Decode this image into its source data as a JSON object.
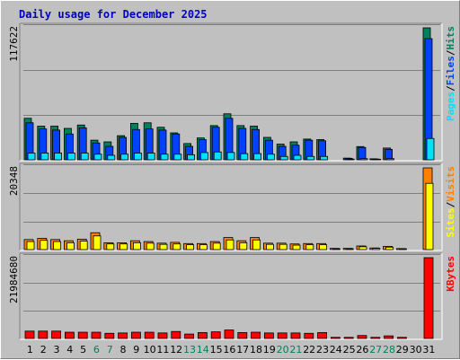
{
  "title": "Daily usage for December 2025",
  "colors": {
    "background": "#c0c0c0",
    "grid": "#808080",
    "hits": "#00805c",
    "files": "#0040ff",
    "pages": "#00e0ff",
    "visits": "#ff8000",
    "sites": "#ffff00",
    "kbytes": "#ff0000",
    "weekend": "#00805c",
    "weekday": "#000000",
    "title": "#0000c0"
  },
  "chart_data": [
    {
      "type": "bar",
      "panel": "hits-files-pages",
      "ymax_label": "117622",
      "ylim": [
        0,
        117622
      ],
      "legend": [
        {
          "text": "Pages",
          "color": "#00e0ff"
        },
        {
          "text": "/",
          "color": "#000000"
        },
        {
          "text": "Files",
          "color": "#0040ff"
        },
        {
          "text": "/",
          "color": "#000000"
        },
        {
          "text": "Hits",
          "color": "#00805c"
        }
      ],
      "categories": [
        "1",
        "2",
        "3",
        "4",
        "5",
        "6",
        "7",
        "8",
        "9",
        "10",
        "11",
        "12",
        "13",
        "14",
        "15",
        "16",
        "17",
        "18",
        "19",
        "20",
        "21",
        "22",
        "23",
        "24",
        "25",
        "26",
        "27",
        "28",
        "29",
        "30",
        "31"
      ],
      "weekend_days": [
        "6",
        "7",
        "13",
        "14",
        "20",
        "21",
        "27",
        "28"
      ],
      "series": [
        {
          "name": "Hits",
          "color": "#00805c",
          "values": [
            37000,
            30000,
            30000,
            28000,
            31000,
            17500,
            16000,
            21500,
            32500,
            33000,
            29000,
            24000,
            14500,
            19500,
            30500,
            41000,
            30500,
            30000,
            20000,
            14000,
            16000,
            18500,
            18000,
            0,
            1500,
            11800,
            900,
            10500,
            0,
            0,
            117622
          ]
        },
        {
          "name": "Files",
          "color": "#0040ff",
          "values": [
            33000,
            27500,
            26500,
            23000,
            28500,
            15000,
            12000,
            20000,
            27000,
            27500,
            26500,
            23000,
            12000,
            18000,
            29000,
            37000,
            28000,
            27000,
            17500,
            12000,
            13000,
            17500,
            17000,
            0,
            1300,
            11000,
            700,
            9300,
            0,
            0,
            108000
          ]
        },
        {
          "name": "Pages",
          "color": "#00e0ff",
          "values": [
            6000,
            6000,
            6000,
            6000,
            6000,
            5000,
            4000,
            5000,
            6000,
            6000,
            5000,
            5000,
            4500,
            6500,
            7000,
            6500,
            5500,
            5500,
            5000,
            3000,
            4000,
            3000,
            3000,
            400,
            600,
            1000,
            500,
            1000,
            0,
            0,
            19000
          ]
        }
      ]
    },
    {
      "type": "bar",
      "panel": "visits-sites",
      "ymax_label": "20348",
      "ylim": [
        0,
        20348
      ],
      "legend": [
        {
          "text": "Sites",
          "color": "#ffff00"
        },
        {
          "text": "/",
          "color": "#000000"
        },
        {
          "text": "Visits",
          "color": "#ff8000"
        }
      ],
      "categories": [
        "1",
        "2",
        "3",
        "4",
        "5",
        "6",
        "7",
        "8",
        "9",
        "10",
        "11",
        "12",
        "13",
        "14",
        "15",
        "16",
        "17",
        "18",
        "19",
        "20",
        "21",
        "22",
        "23",
        "24",
        "25",
        "26",
        "27",
        "28",
        "29",
        "30",
        "31"
      ],
      "series": [
        {
          "name": "Visits",
          "color": "#ff8000",
          "values": [
            2500,
            2800,
            2500,
            2200,
            2600,
            4200,
            1700,
            1700,
            2200,
            2000,
            1600,
            1800,
            1500,
            1500,
            2000,
            3000,
            2200,
            3000,
            1600,
            1600,
            1400,
            1500,
            1500,
            300,
            300,
            900,
            400,
            800,
            250,
            0,
            20348
          ]
        },
        {
          "name": "Sites",
          "color": "#ffff00",
          "values": [
            2000,
            2300,
            2000,
            1700,
            2100,
            3400,
            1400,
            1400,
            1700,
            1600,
            1300,
            1400,
            1200,
            1200,
            1600,
            2400,
            1700,
            2400,
            1300,
            1300,
            1100,
            1200,
            1200,
            200,
            200,
            700,
            300,
            600,
            200,
            0,
            16500
          ]
        }
      ]
    },
    {
      "type": "bar",
      "panel": "kbytes",
      "ymax_label": "21984680",
      "ylim": [
        0,
        21984680
      ],
      "legend": [
        {
          "text": "KBytes",
          "color": "#ff0000"
        }
      ],
      "categories": [
        "1",
        "2",
        "3",
        "4",
        "5",
        "6",
        "7",
        "8",
        "9",
        "10",
        "11",
        "12",
        "13",
        "14",
        "15",
        "16",
        "17",
        "18",
        "19",
        "20",
        "21",
        "22",
        "23",
        "24",
        "25",
        "26",
        "27",
        "28",
        "29",
        "30",
        "31"
      ],
      "series": [
        {
          "name": "KBytes",
          "color": "#ff0000",
          "values": [
            2000000,
            2000000,
            2000000,
            1700000,
            1700000,
            1700000,
            1400000,
            1500000,
            1700000,
            1700000,
            1500000,
            1900000,
            1200000,
            1600000,
            1800000,
            2300000,
            1600000,
            1700000,
            1500000,
            1500000,
            1500000,
            1400000,
            1600000,
            300000,
            300000,
            800000,
            300000,
            700000,
            300000,
            0,
            21984680
          ]
        }
      ]
    }
  ]
}
